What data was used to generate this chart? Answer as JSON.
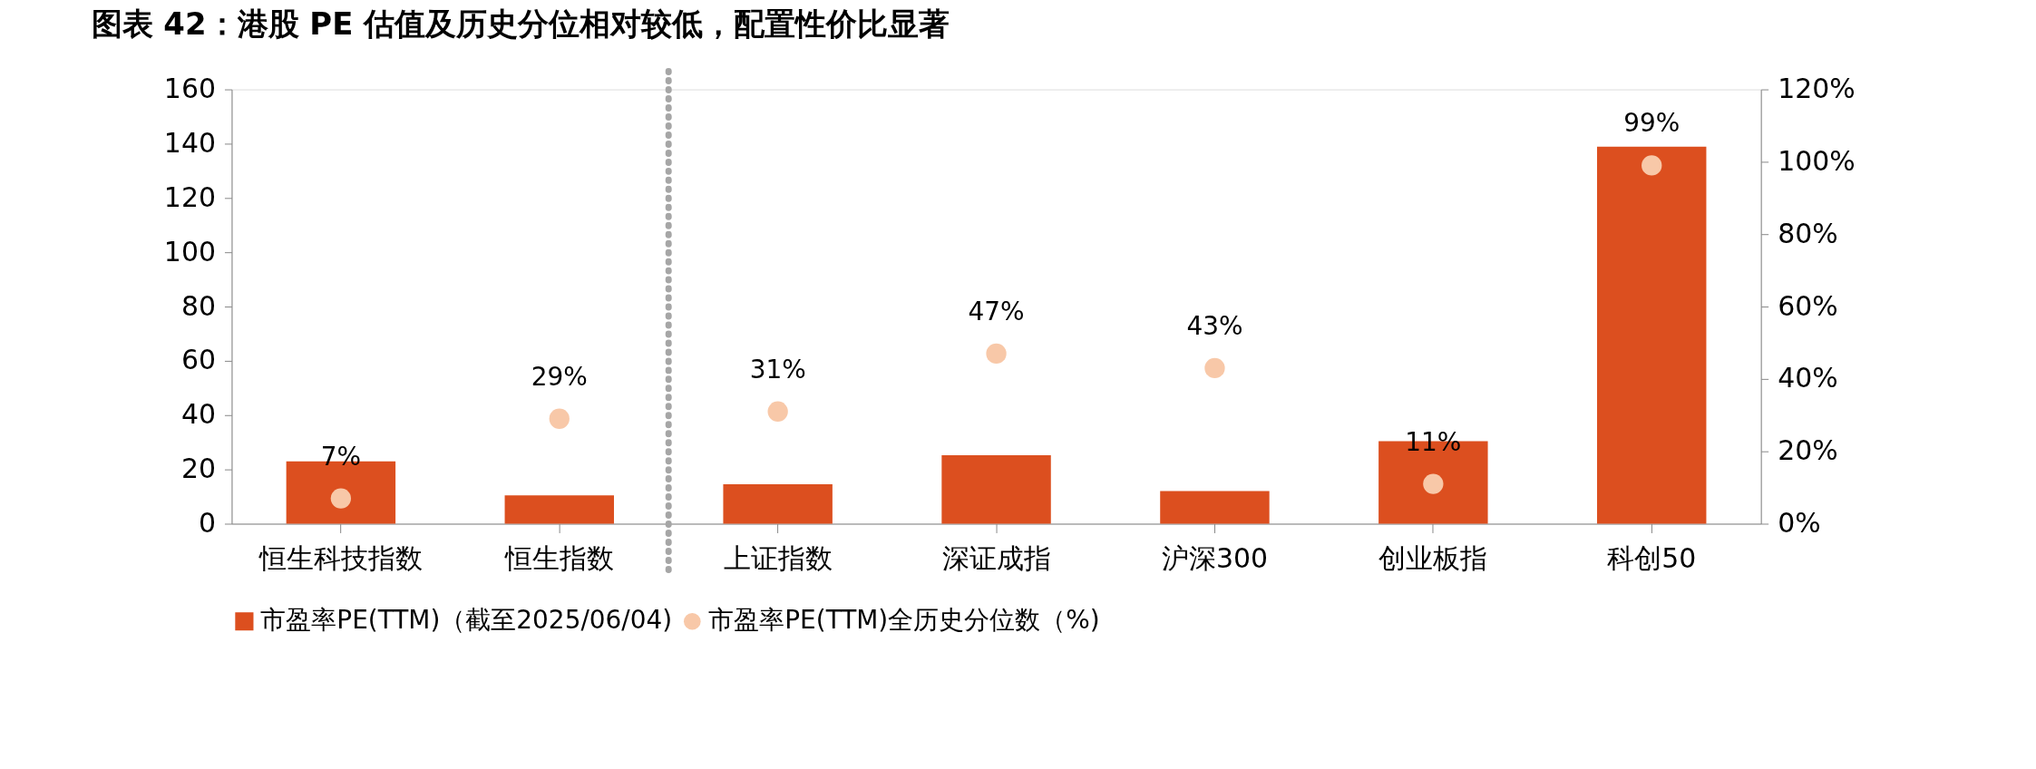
{
  "chart_data": {
    "type": "bar",
    "title": "图表 42：港股 PE 估值及历史分位相对较低，配置性价比显著",
    "categories": [
      "恒生科技指数",
      "恒生指数",
      "上证指数",
      "深证成指",
      "沪深300",
      "创业板指",
      "科创50"
    ],
    "series": [
      {
        "name": "市盈率PE(TTM)（截至2025/06/04)",
        "color": "#dc4f1f",
        "values": [
          23.0,
          10.4,
          14.5,
          25.2,
          12.0,
          30.4,
          138.9
        ]
      },
      {
        "name": "市盈率PE(TTM)全历史分位数（%)",
        "type": "scatter",
        "axis": "y2",
        "color": "#f8c8a8",
        "values": [
          7,
          29,
          31,
          47,
          43,
          11,
          99
        ],
        "value_labels": [
          "7%",
          "29%",
          "31%",
          "47%",
          "43%",
          "11%",
          "99%"
        ]
      }
    ],
    "ylim": [
      0,
      160
    ],
    "yticks": [
      0,
      20,
      40,
      60,
      80,
      100,
      120,
      140,
      160
    ],
    "y2lim": [
      0,
      120
    ],
    "y2ticks": [
      {
        "value": 0,
        "label": "0%"
      },
      {
        "value": 20,
        "label": "20%"
      },
      {
        "value": 40,
        "label": "40%"
      },
      {
        "value": 60,
        "label": "60%"
      },
      {
        "value": 80,
        "label": "80%"
      },
      {
        "value": 100,
        "label": "100%"
      },
      {
        "value": 120,
        "label": "120%"
      }
    ],
    "grid": false,
    "legend": "bottom",
    "marker": "circle"
  }
}
